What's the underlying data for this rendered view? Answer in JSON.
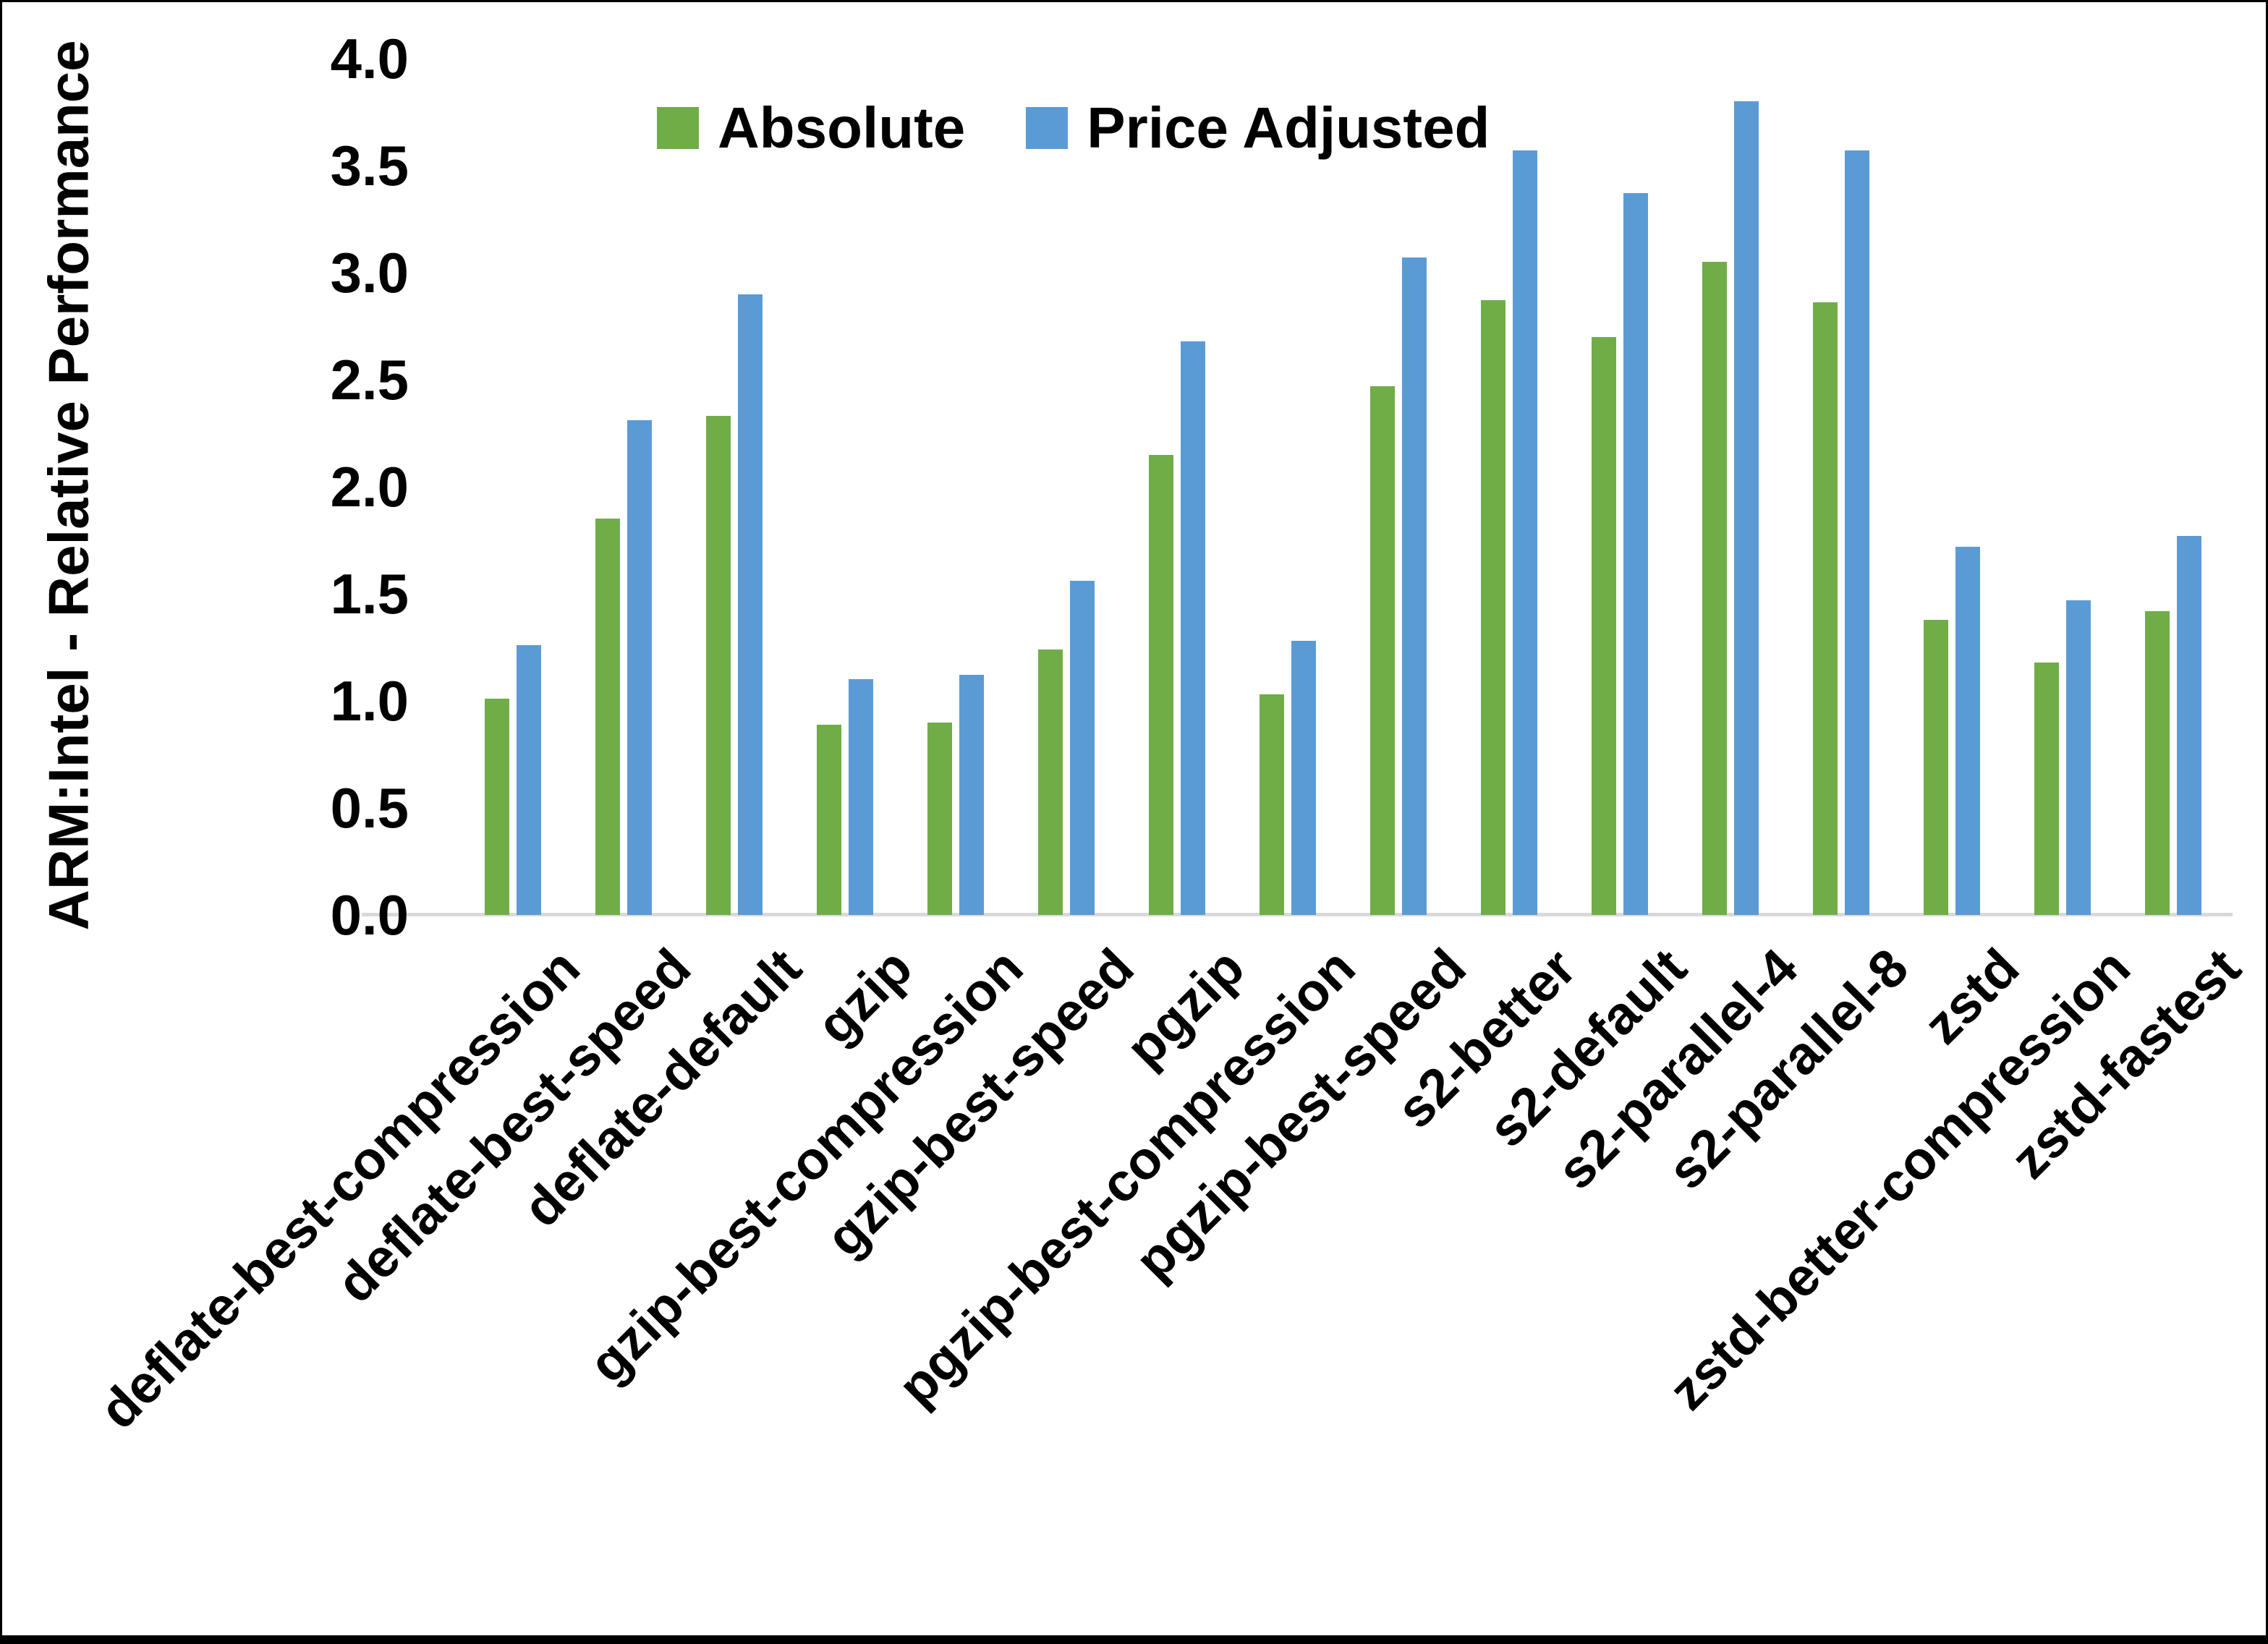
{
  "chart_data": {
    "type": "bar",
    "title": "",
    "xlabel": "",
    "ylabel": "ARM:Intel - Relative Performance",
    "ylim": [
      0.0,
      4.0
    ],
    "ytick_step": 0.5,
    "ytick_labels": [
      "0.0",
      "0.5",
      "1.0",
      "1.5",
      "2.0",
      "2.5",
      "3.0",
      "3.5",
      "4.0"
    ],
    "grid": false,
    "legend_position": "top-center",
    "categories": [
      "deflate-best-compression",
      "deflate-best-speed",
      "deflate-default",
      "gzip",
      "gzip-best-compression",
      "gzip-best-speed",
      "pgzip",
      "pgzip-best-compression",
      "pgzip-best-speed",
      "s2-better",
      "s2-default",
      "s2-parallel-4",
      "s2-parallel-8",
      "zstd",
      "zstd-better-compression",
      "zstd-fastest"
    ],
    "series": [
      {
        "name": "Absolute",
        "color": "#70AD47",
        "values": [
          1.01,
          1.85,
          2.33,
          0.89,
          0.9,
          1.24,
          2.15,
          1.03,
          2.47,
          2.87,
          2.7,
          3.05,
          2.86,
          1.38,
          1.18,
          1.42
        ]
      },
      {
        "name": "Price Adjusted",
        "color": "#5B9BD5",
        "values": [
          1.26,
          2.31,
          2.9,
          1.1,
          1.12,
          1.56,
          2.68,
          1.28,
          3.07,
          3.57,
          3.37,
          3.8,
          3.57,
          1.72,
          1.47,
          1.77
        ]
      }
    ]
  },
  "colors": {
    "background": "#FFFFFF",
    "text": "#000000",
    "axis_line": "#D9D9D9",
    "border": "#000000"
  }
}
